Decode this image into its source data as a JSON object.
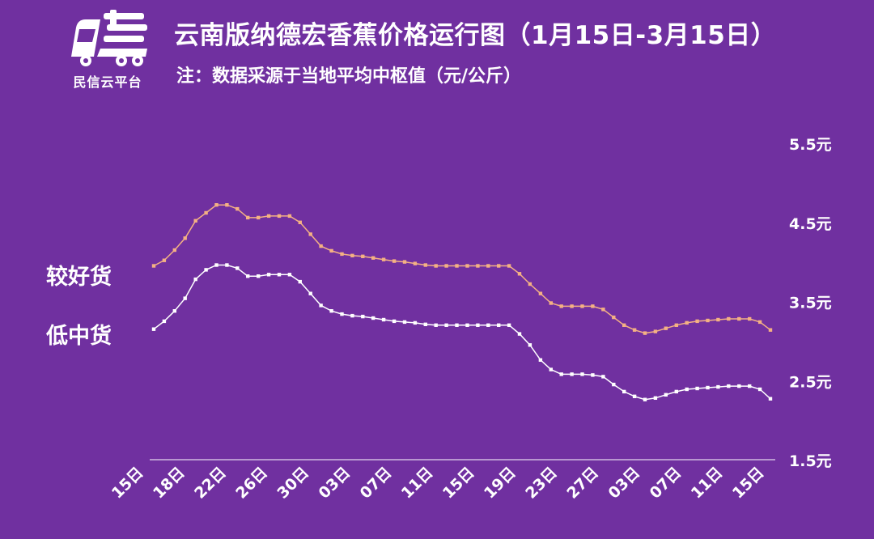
{
  "header": {
    "brand_name": "民信云平台",
    "title": "云南版纳德宏香蕉价格运行图（1月15日-3月15日）",
    "subtitle": "注：数据采源于当地平均中枢值（元/公斤）"
  },
  "colors": {
    "background": "#7030a0",
    "good_line": "#f4b183",
    "low_line": "#ffffff",
    "axis": "#ffffff"
  },
  "chart_data": {
    "type": "line",
    "ylim": [
      1.5,
      5.5
    ],
    "y_ticks": [
      "5.5元",
      "4.5元",
      "3.5元",
      "2.5元",
      "1.5元"
    ],
    "y_tick_values": [
      5.5,
      4.5,
      3.5,
      2.5,
      1.5
    ],
    "x_tick_labels": [
      "15日",
      "18日",
      "22日",
      "26日",
      "30日",
      "03日",
      "07日",
      "11日",
      "15日",
      "19日",
      "23日",
      "27日",
      "03日",
      "07日",
      "11日",
      "15日"
    ],
    "series": [
      {
        "name": "较好货",
        "values": [
          3.95,
          4.02,
          4.15,
          4.3,
          4.52,
          4.62,
          4.72,
          4.72,
          4.67,
          4.56,
          4.56,
          4.58,
          4.58,
          4.58,
          4.5,
          4.35,
          4.2,
          4.14,
          4.1,
          4.08,
          4.07,
          4.05,
          4.03,
          4.01,
          4.0,
          3.98,
          3.96,
          3.95,
          3.95,
          3.95,
          3.95,
          3.95,
          3.95,
          3.95,
          3.95,
          3.85,
          3.72,
          3.6,
          3.48,
          3.44,
          3.44,
          3.44,
          3.44,
          3.4,
          3.3,
          3.2,
          3.14,
          3.1,
          3.12,
          3.16,
          3.2,
          3.23,
          3.25,
          3.26,
          3.27,
          3.28,
          3.28,
          3.28,
          3.24,
          3.14
        ]
      },
      {
        "name": "低中货",
        "values": [
          3.15,
          3.25,
          3.38,
          3.54,
          3.78,
          3.9,
          3.96,
          3.96,
          3.92,
          3.82,
          3.82,
          3.84,
          3.84,
          3.84,
          3.75,
          3.6,
          3.45,
          3.38,
          3.34,
          3.32,
          3.31,
          3.29,
          3.27,
          3.25,
          3.24,
          3.23,
          3.21,
          3.2,
          3.2,
          3.2,
          3.2,
          3.2,
          3.2,
          3.2,
          3.2,
          3.09,
          2.95,
          2.76,
          2.64,
          2.58,
          2.58,
          2.58,
          2.57,
          2.55,
          2.45,
          2.36,
          2.3,
          2.26,
          2.28,
          2.32,
          2.36,
          2.39,
          2.4,
          2.41,
          2.42,
          2.43,
          2.43,
          2.43,
          2.39,
          2.27
        ]
      }
    ]
  }
}
